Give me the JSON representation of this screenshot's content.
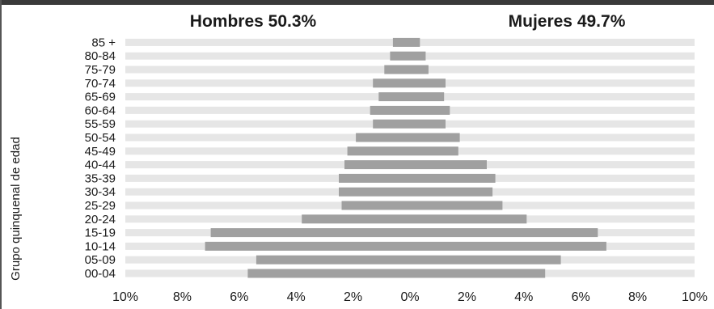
{
  "chart_data": {
    "type": "bar",
    "orientation": "horizontal-pyramid",
    "ylabel": "Grupo quinquenal de edad",
    "categories": [
      "85 +",
      "80-84",
      "75-79",
      "70-74",
      "65-69",
      "60-64",
      "55-59",
      "50-54",
      "45-49",
      "40-44",
      "35-39",
      "30-34",
      "25-29",
      "20-24",
      "15-19",
      "10-14",
      "05-09",
      "00-04"
    ],
    "series": [
      {
        "name": "Hombres 50.3%",
        "side": "left",
        "values": [
          0.6,
          0.7,
          0.9,
          1.3,
          1.1,
          1.4,
          1.3,
          1.9,
          2.2,
          2.3,
          2.5,
          2.5,
          2.4,
          3.8,
          7.0,
          7.2,
          5.4,
          5.7
        ]
      },
      {
        "name": "Mujeres 49.7%",
        "side": "right",
        "values": [
          0.35,
          0.55,
          0.65,
          1.25,
          1.2,
          1.4,
          1.25,
          1.75,
          1.7,
          2.7,
          3.0,
          2.9,
          3.25,
          4.1,
          6.6,
          6.9,
          5.3,
          4.75
        ]
      }
    ],
    "xlim": [
      -10,
      10
    ],
    "xticks": [
      -10,
      -8,
      -6,
      -4,
      -2,
      0,
      2,
      4,
      6,
      8,
      10
    ],
    "xtick_labels": [
      "10%",
      "8%",
      "6%",
      "4%",
      "2%",
      "0%",
      "2%",
      "4%",
      "6%",
      "8%",
      "10%"
    ],
    "legend": "top",
    "grid": "row-bands",
    "colors": {
      "bar": "#a0a0a0",
      "band": "#e6e6e6",
      "frame": "#3a3a3a"
    }
  }
}
